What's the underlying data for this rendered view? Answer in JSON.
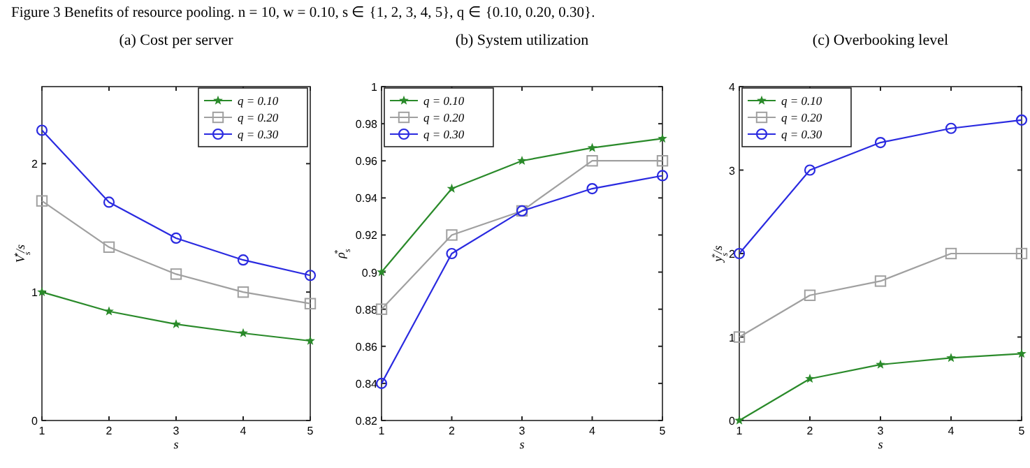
{
  "chart_data": [
    {
      "type": "line",
      "title": "(a) Cost per server",
      "annotations": [
        "Figure 3  Benefits of resource pooling. n = 10, w = 0.10, s ∈ {1, 2, 3, 4, 5}, q ∈ {0.10, 0.20, 0.30}."
      ],
      "xlabel": "s",
      "ylabel": "V$_{s}$$^{*}$/s",
      "x": [
        1,
        2,
        3,
        4,
        5
      ],
      "xlim": [
        1,
        5
      ],
      "xticks": [
        1,
        2,
        3,
        4,
        5
      ],
      "ylim": [
        0,
        2.6
      ],
      "yticks": [
        0,
        1,
        2
      ],
      "legend": "top right",
      "grid": false,
      "series": [
        {
          "name": "q = 0.10",
          "color": "#2a8a2a",
          "marker": "star",
          "values": [
            1.0,
            0.85,
            0.75,
            0.68,
            0.62
          ]
        },
        {
          "name": "q = 0.20",
          "color": "#a0a0a0",
          "marker": "square",
          "values": [
            1.71,
            1.35,
            1.14,
            1.0,
            0.91
          ]
        },
        {
          "name": "q = 0.30",
          "color": "#2a2ae0",
          "marker": "circle",
          "values": [
            2.26,
            1.7,
            1.42,
            1.25,
            1.13
          ]
        }
      ]
    },
    {
      "type": "line",
      "title": "(b) System utilization",
      "xlabel": "s",
      "ylabel": "ρ$_{s}$$^{*}$",
      "x": [
        1,
        2,
        3,
        4,
        5
      ],
      "xlim": [
        1,
        5
      ],
      "xticks": [
        1,
        2,
        3,
        4,
        5
      ],
      "ylim": [
        0.82,
        1
      ],
      "yticks": [
        0.82,
        0.84,
        0.86,
        0.88,
        0.9,
        0.92,
        0.94,
        0.96,
        0.98,
        1
      ],
      "legend": "top left",
      "grid": false,
      "series": [
        {
          "name": "q = 0.10",
          "color": "#2a8a2a",
          "marker": "star",
          "values": [
            0.9,
            0.945,
            0.96,
            0.967,
            0.972
          ]
        },
        {
          "name": "q = 0.20",
          "color": "#a0a0a0",
          "marker": "square",
          "values": [
            0.88,
            0.92,
            0.933,
            0.96,
            0.96
          ]
        },
        {
          "name": "q = 0.30",
          "color": "#2a2ae0",
          "marker": "circle",
          "values": [
            0.84,
            0.91,
            0.933,
            0.945,
            0.952
          ]
        }
      ]
    },
    {
      "type": "line",
      "title": "(c) Overbooking level",
      "xlabel": "s",
      "ylabel": "y$_{s}$$^{*}$/s",
      "x": [
        1,
        2,
        3,
        4,
        5
      ],
      "xlim": [
        1,
        5
      ],
      "xticks": [
        1,
        2,
        3,
        4,
        5
      ],
      "ylim": [
        0,
        4
      ],
      "yticks": [
        0,
        1,
        2,
        3,
        4
      ],
      "legend": "top left",
      "grid": false,
      "series": [
        {
          "name": "q = 0.10",
          "color": "#2a8a2a",
          "marker": "star",
          "values": [
            0,
            0.5,
            0.67,
            0.75,
            0.8
          ]
        },
        {
          "name": "q = 0.20",
          "color": "#a0a0a0",
          "marker": "square",
          "values": [
            1,
            1.5,
            1.67,
            2,
            2
          ]
        },
        {
          "name": "q = 0.30",
          "color": "#2a2ae0",
          "marker": "circle",
          "values": [
            2,
            3,
            3.33,
            3.5,
            3.6
          ]
        }
      ]
    }
  ]
}
